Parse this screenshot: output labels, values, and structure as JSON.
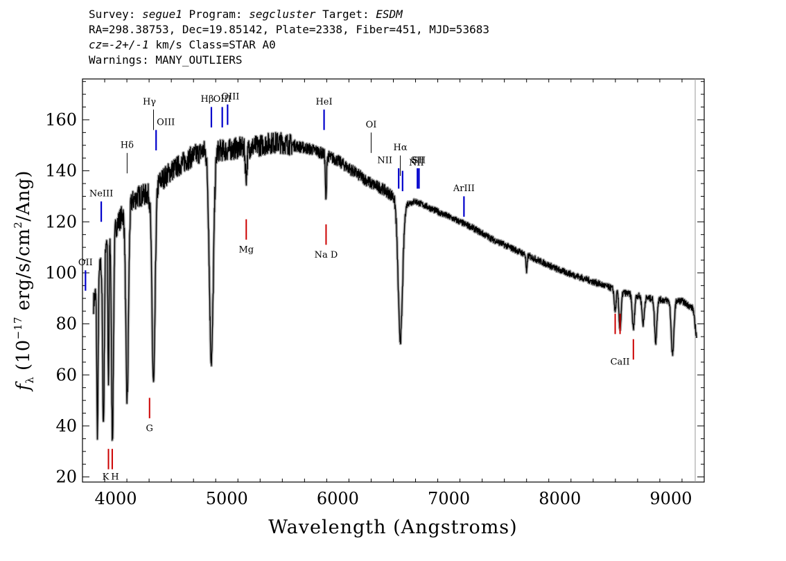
{
  "header": {
    "line1": {
      "survey_label": "Survey: ",
      "survey": "segue1",
      "program_label": " Program: ",
      "program": "segcluster",
      "target_label": " Target: ",
      "target": "ESDM"
    },
    "line2": "RA=298.38753, Dec=19.85142, Plate=2338, Fiber=451, MJD=53683",
    "line3": {
      "cz": "cz=-2+/-1",
      "rest": " km/s Class=STAR A0"
    },
    "line4": "Warnings: MANY_OUTLIERS"
  },
  "chart_data": {
    "type": "line",
    "xlabel": "Wavelength (Angstroms)",
    "ylabel": "f_λ (10^-17 erg/s/cm^2/Ang)",
    "xlim": [
      3700,
      9300
    ],
    "ylim": [
      18,
      176
    ],
    "x_ticks": [
      4000,
      5000,
      6000,
      7000,
      8000,
      9000
    ],
    "y_ticks": [
      20,
      40,
      60,
      80,
      100,
      120,
      140,
      160
    ],
    "colors": {
      "spectrum": "#000000",
      "error": "#aaaaaa",
      "emission": "#0000cc",
      "absorption": "#cc0000"
    },
    "continuum": [
      [
        3800,
        88
      ],
      [
        3850,
        100
      ],
      [
        3900,
        112
      ],
      [
        3950,
        117
      ],
      [
        4000,
        118
      ],
      [
        4050,
        122
      ],
      [
        4100,
        126
      ],
      [
        4200,
        130
      ],
      [
        4300,
        131
      ],
      [
        4400,
        136
      ],
      [
        4500,
        140
      ],
      [
        4600,
        143
      ],
      [
        4700,
        146
      ],
      [
        4800,
        148
      ],
      [
        4900,
        148
      ],
      [
        5000,
        148
      ],
      [
        5100,
        149
      ],
      [
        5200,
        149
      ],
      [
        5300,
        150
      ],
      [
        5400,
        151
      ],
      [
        5500,
        151
      ],
      [
        5600,
        150
      ],
      [
        5700,
        149
      ],
      [
        5800,
        148
      ],
      [
        5900,
        146
      ],
      [
        6000,
        144
      ],
      [
        6100,
        141
      ],
      [
        6200,
        138
      ],
      [
        6300,
        135
      ],
      [
        6400,
        133
      ],
      [
        6500,
        130
      ],
      [
        6600,
        127
      ],
      [
        6700,
        128
      ],
      [
        6800,
        126
      ],
      [
        6900,
        124
      ],
      [
        7000,
        122
      ],
      [
        7200,
        118
      ],
      [
        7400,
        113
      ],
      [
        7600,
        109
      ],
      [
        7800,
        105
      ],
      [
        8000,
        101
      ],
      [
        8200,
        98
      ],
      [
        8400,
        95
      ],
      [
        8600,
        92
      ],
      [
        8800,
        90
      ],
      [
        9000,
        89
      ],
      [
        9100,
        89
      ],
      [
        9200,
        86
      ],
      [
        9230,
        75
      ]
    ],
    "absorption_features": [
      {
        "wave": 3835,
        "min": 38,
        "width": 6
      },
      {
        "wave": 3889,
        "min": 41,
        "width": 8
      },
      {
        "wave": 3934,
        "min": 55,
        "width": 5
      },
      {
        "wave": 3970,
        "min": 36,
        "width": 9
      },
      {
        "wave": 4102,
        "min": 50,
        "width": 12
      },
      {
        "wave": 4340,
        "min": 56,
        "width": 14
      },
      {
        "wave": 4861,
        "min": 66,
        "width": 18
      },
      {
        "wave": 5175,
        "min": 138,
        "width": 8
      },
      {
        "wave": 5893,
        "min": 128,
        "width": 5
      },
      {
        "wave": 6563,
        "min": 74,
        "width": 20
      },
      {
        "wave": 7700,
        "min": 100,
        "width": 5
      },
      {
        "wave": 8498,
        "min": 85,
        "width": 8
      },
      {
        "wave": 8542,
        "min": 78,
        "width": 10
      },
      {
        "wave": 8662,
        "min": 78,
        "width": 10
      },
      {
        "wave": 8750,
        "min": 80,
        "width": 10
      },
      {
        "wave": 8863,
        "min": 73,
        "width": 10
      },
      {
        "wave": 9015,
        "min": 68,
        "width": 12
      }
    ],
    "emission_lines": [
      {
        "label": "OII",
        "wave": 3727,
        "y0": 93,
        "y1": 101,
        "label_y": 103,
        "label_dx": 0
      },
      {
        "label": "NeIII",
        "wave": 3869,
        "y0": 120,
        "y1": 128,
        "label_y": 130,
        "label_dx": 0
      },
      {
        "label": "OIII",
        "wave": 4363,
        "y0": 148,
        "y1": 156,
        "label_y": 158,
        "label_dx": 14
      },
      {
        "label": "Hβ",
        "wave": 4861,
        "y0": 157,
        "y1": 165,
        "label_y": 167,
        "label_dx": -6
      },
      {
        "label": "OIII",
        "wave": 4959,
        "y0": 157,
        "y1": 165,
        "label_y": 167,
        "label_dx": 0
      },
      {
        "label": "OIII",
        "wave": 5007,
        "y0": 158,
        "y1": 166,
        "label_y": 168,
        "label_dx": 4
      },
      {
        "label": "HeI",
        "wave": 5876,
        "y0": 156,
        "y1": 164,
        "label_y": 166,
        "label_dx": 0
      },
      {
        "label": "NII",
        "wave": 6548,
        "y0": 133,
        "y1": 141,
        "label_y": 143,
        "label_dx": -20
      },
      {
        "label": "NII",
        "wave": 6583,
        "y0": 132,
        "y1": 140,
        "label_y": 142,
        "label_dx": 20
      },
      {
        "label": "SII",
        "wave": 6717,
        "y0": 133,
        "y1": 141,
        "label_y": 143,
        "label_dx": 0
      },
      {
        "label": "SII",
        "wave": 6731,
        "y0": 133,
        "y1": 141,
        "label_y": 143,
        "label_dx": 0
      },
      {
        "label": "ArIII",
        "wave": 7136,
        "y0": 122,
        "y1": 130,
        "label_y": 132,
        "label_dx": 0
      }
    ],
    "thin_lines": [
      {
        "label": "Hδ",
        "wave": 4102,
        "y0": 139,
        "y1": 147,
        "label_y": 149,
        "label_dx": 0
      },
      {
        "label": "Hγ",
        "wave": 4340,
        "y0": 156,
        "y1": 164,
        "label_y": 166,
        "label_dx": -6
      },
      {
        "label": "OI",
        "wave": 6300,
        "y0": 147,
        "y1": 155,
        "label_y": 157,
        "label_dx": 0
      },
      {
        "label": "Hα",
        "wave": 6563,
        "y0": 138,
        "y1": 146,
        "label_y": 148,
        "label_dx": 0
      }
    ],
    "absorption_lines": [
      {
        "label": "K",
        "wave": 3934,
        "y0": 23,
        "y1": 31,
        "label_y": 19,
        "label_dx": -4
      },
      {
        "label": "H",
        "wave": 3968,
        "y0": 23,
        "y1": 31,
        "label_y": 19,
        "label_dx": 4
      },
      {
        "label": "G",
        "wave": 4304,
        "y0": 43,
        "y1": 51,
        "label_y": 38,
        "label_dx": 0
      },
      {
        "label": "Mg",
        "wave": 5175,
        "y0": 113,
        "y1": 121,
        "label_y": 108,
        "label_dx": 0
      },
      {
        "label": "Na D",
        "wave": 5894,
        "y0": 111,
        "y1": 119,
        "label_y": 106,
        "label_dx": 0
      },
      {
        "label": "",
        "wave": 8498,
        "y0": 76,
        "y1": 84,
        "label_y": 0,
        "label_dx": 0
      },
      {
        "label": "CaII",
        "wave": 8542,
        "y0": 76,
        "y1": 84,
        "label_y": 64,
        "label_dx": 0
      },
      {
        "label": "",
        "wave": 8662,
        "y0": 66,
        "y1": 74,
        "label_y": 0,
        "label_dx": 0
      }
    ]
  }
}
